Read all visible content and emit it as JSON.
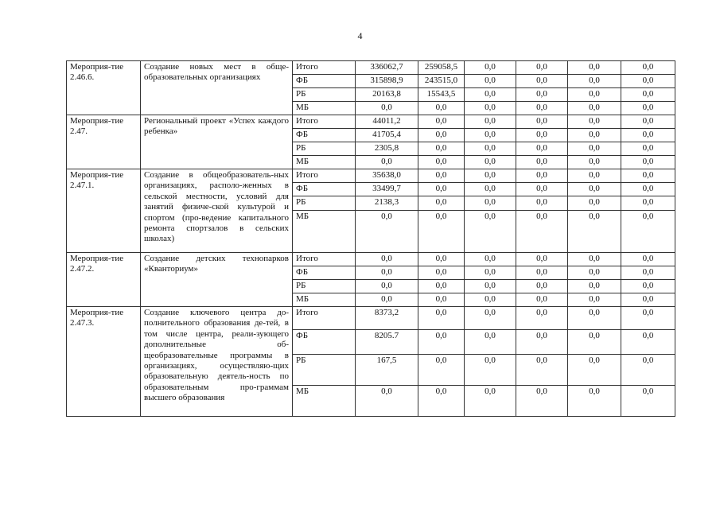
{
  "page_number": "4",
  "groups": [
    {
      "code": "Мероприя-тие 2.46.6.",
      "description": "Создание новых мест в обще-образовательных организациях",
      "rows": [
        {
          "source": "Итого",
          "values": [
            "336062,7",
            "259058,5",
            "0,0",
            "0,0",
            "0,0",
            "0,0"
          ]
        },
        {
          "source": "ФБ",
          "values": [
            "315898,9",
            "243515,0",
            "0,0",
            "0,0",
            "0,0",
            "0,0"
          ]
        },
        {
          "source": "РБ",
          "values": [
            "20163,8",
            "15543,5",
            "0,0",
            "0,0",
            "0,0",
            "0,0"
          ]
        },
        {
          "source": "МБ",
          "values": [
            "0,0",
            "0,0",
            "0,0",
            "0,0",
            "0,0",
            "0,0"
          ]
        }
      ]
    },
    {
      "code": "Мероприя-тие 2.47.",
      "description": "Региональный проект «Успех каждого ребенка»",
      "rows": [
        {
          "source": "Итого",
          "values": [
            "44011,2",
            "0,0",
            "0,0",
            "0,0",
            "0,0",
            "0,0"
          ]
        },
        {
          "source": "ФБ",
          "values": [
            "41705,4",
            "0,0",
            "0,0",
            "0,0",
            "0,0",
            "0,0"
          ]
        },
        {
          "source": "РБ",
          "values": [
            "2305,8",
            "0,0",
            "0,0",
            "0,0",
            "0,0",
            "0,0"
          ]
        },
        {
          "source": "МБ",
          "values": [
            "0,0",
            "0,0",
            "0,0",
            "0,0",
            "0,0",
            "0,0"
          ]
        }
      ]
    },
    {
      "code": "Мероприя-тие 2.47.1.",
      "description": "Создание в общеобразователь-ных организациях, располо-женных в сельской местности, условий для занятий физиче-ской культурой и спортом (про-ведение капитального ремонта спортзалов в сельских школах)",
      "rows": [
        {
          "source": "Итого",
          "values": [
            "35638,0",
            "0,0",
            "0,0",
            "0,0",
            "0,0",
            "0,0"
          ]
        },
        {
          "source": "ФБ",
          "values": [
            "33499,7",
            "0,0",
            "0,0",
            "0,0",
            "0,0",
            "0,0"
          ]
        },
        {
          "source": "РБ",
          "values": [
            "2138,3",
            "0,0",
            "0,0",
            "0,0",
            "0,0",
            "0,0"
          ]
        },
        {
          "source": "МБ",
          "values": [
            "0,0",
            "0,0",
            "0,0",
            "0,0",
            "0,0",
            "0,0"
          ]
        }
      ]
    },
    {
      "code": "Мероприя-тие 2.47.2.",
      "description": "Создание детских технопарков «Кванториум»",
      "rows": [
        {
          "source": "Итого",
          "values": [
            "0,0",
            "0,0",
            "0,0",
            "0,0",
            "0,0",
            "0,0"
          ]
        },
        {
          "source": "ФБ",
          "values": [
            "0,0",
            "0,0",
            "0,0",
            "0,0",
            "0,0",
            "0,0"
          ]
        },
        {
          "source": "РБ",
          "values": [
            "0,0",
            "0,0",
            "0,0",
            "0,0",
            "0,0",
            "0,0"
          ]
        },
        {
          "source": "МБ",
          "values": [
            "0,0",
            "0,0",
            "0,0",
            "0,0",
            "0,0",
            "0,0"
          ]
        }
      ]
    },
    {
      "code": "Мероприя-тие 2.47.3.",
      "description": "Создание ключевого центра до-полнительного образования де-тей, в том числе центра, реали-зующего дополнительные об-щеобразовательные программы в организациях, осуществляю-щих образовательную деятель-ность по образовательным про-граммам высшего образования",
      "rows": [
        {
          "source": "Итого",
          "values": [
            "8373,2",
            "0,0",
            "0,0",
            "0,0",
            "0,0",
            "0,0"
          ]
        },
        {
          "source": "ФБ",
          "values": [
            "8205.7",
            "0,0",
            "0,0",
            "0,0",
            "0,0",
            "0,0"
          ]
        },
        {
          "source": "РБ",
          "values": [
            "167,5",
            "0,0",
            "0,0",
            "0,0",
            "0,0",
            "0,0"
          ]
        },
        {
          "source": "МБ",
          "values": [
            "0,0",
            "0,0",
            "0,0",
            "0,0",
            "0,0",
            "0,0"
          ]
        }
      ]
    }
  ]
}
